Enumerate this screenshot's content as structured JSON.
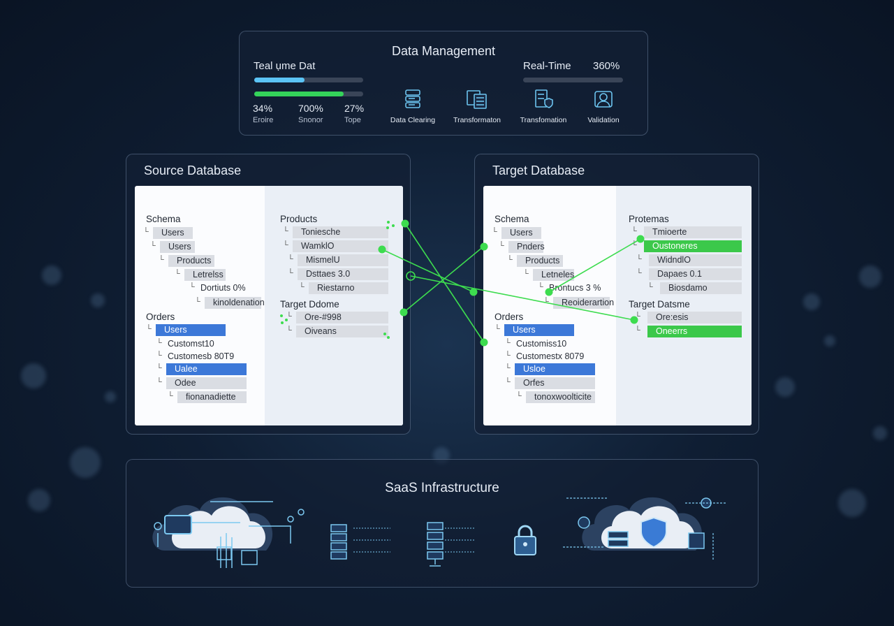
{
  "top_panel": {
    "title": "Data Management",
    "left_label": "Teal ụme Dat",
    "bars": [
      {
        "color": "#5bc4f5",
        "percent": 46
      },
      {
        "color": "#34d35a",
        "percent": 82
      }
    ],
    "stats": [
      {
        "value": "34%",
        "label": "Eroire"
      },
      {
        "value": "700%",
        "label": "Snonor"
      },
      {
        "value": "27%",
        "label": "Tope"
      }
    ],
    "steps": [
      {
        "icon": "database-stack-icon",
        "label": "Data Clearing"
      },
      {
        "icon": "documents-icon",
        "label": "Transformaton"
      },
      {
        "icon": "server-shield-icon",
        "label": "Transfomation"
      },
      {
        "icon": "user-validation-icon",
        "label": "Validation"
      }
    ],
    "right_label": "Real-Time",
    "right_value": "360%",
    "right_bar_percent": 0
  },
  "source": {
    "title": "Source Database",
    "left": [
      {
        "t": "label",
        "text": "Schema"
      },
      {
        "t": "box",
        "text": "Users"
      },
      {
        "t": "box",
        "text": "Users"
      },
      {
        "t": "box",
        "text": "Products"
      },
      {
        "t": "box",
        "text": "Letrelss"
      },
      {
        "t": "plain",
        "text": "Dortiuts 0%"
      },
      {
        "t": "box",
        "text": "kinoldenation"
      },
      {
        "t": "label",
        "text": "Orders"
      },
      {
        "t": "blue",
        "text": "Users"
      },
      {
        "t": "plain",
        "text": "Customst10"
      },
      {
        "t": "plain",
        "text": "Customesb 80T9"
      },
      {
        "t": "blue",
        "text": "Ualee"
      },
      {
        "t": "box",
        "text": "Odee"
      },
      {
        "t": "box",
        "text": "fionanadiette"
      }
    ],
    "right": [
      {
        "t": "label",
        "text": "Products"
      },
      {
        "t": "box",
        "text": "Toniesche"
      },
      {
        "t": "box",
        "text": "WamklO"
      },
      {
        "t": "box",
        "text": "MismelU"
      },
      {
        "t": "box",
        "text": "Dsttaes 3.0"
      },
      {
        "t": "box",
        "text": "Riestarno"
      },
      {
        "t": "label",
        "text": "Target Ddome"
      },
      {
        "t": "box",
        "text": "Ore-#998"
      },
      {
        "t": "box",
        "text": "Oiveans"
      }
    ]
  },
  "target": {
    "title": "Target Database",
    "left": [
      {
        "t": "label",
        "text": "Schema"
      },
      {
        "t": "box",
        "text": "Users"
      },
      {
        "t": "box",
        "text": "Pnders"
      },
      {
        "t": "box",
        "text": "Products"
      },
      {
        "t": "box",
        "text": "Letneles"
      },
      {
        "t": "plain",
        "text": "Brontucs 3 %"
      },
      {
        "t": "box",
        "text": "Reoiderartion"
      },
      {
        "t": "label",
        "text": "Orders"
      },
      {
        "t": "blue",
        "text": "Users"
      },
      {
        "t": "plain",
        "text": "Customiss10"
      },
      {
        "t": "plain",
        "text": "Customestx 8079"
      },
      {
        "t": "blue",
        "text": "Usloe"
      },
      {
        "t": "box",
        "text": "Orfes"
      },
      {
        "t": "box",
        "text": "tonoxwoolticite"
      }
    ],
    "right": [
      {
        "t": "label",
        "text": "Protemas"
      },
      {
        "t": "box",
        "text": "Tmioerte"
      },
      {
        "t": "green",
        "text": "Oustoneres"
      },
      {
        "t": "box",
        "text": "WidndlO"
      },
      {
        "t": "box",
        "text": "Dapaes 0.1"
      },
      {
        "t": "box",
        "text": "Biosdamo"
      },
      {
        "t": "label",
        "text": "Target Datsme"
      },
      {
        "t": "box",
        "text": "Ore:esis"
      },
      {
        "t": "green",
        "text": "Oneerrs"
      }
    ]
  },
  "mapping_color": "#3ddc4f",
  "infra": {
    "title": "SaaS Infrastructure",
    "icons": [
      "cloud-network-icon",
      "server-rack-icon",
      "server-stack-icon",
      "lock-icon",
      "cloud-security-shield-icon"
    ]
  }
}
